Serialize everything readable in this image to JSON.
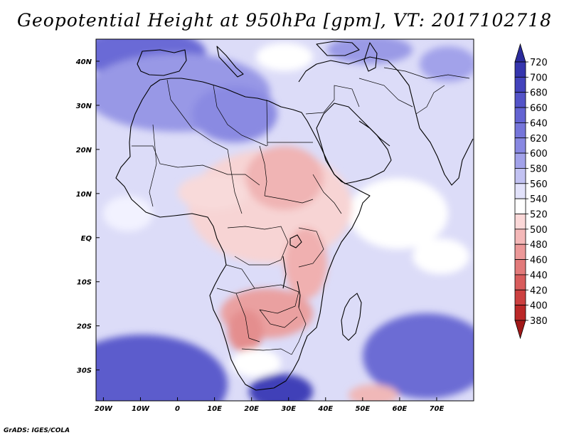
{
  "title": "Geopotential Height at 950hPa [gpm], VT: 2017102718",
  "credit": "GrADS: IGES/COLA",
  "map": {
    "variable": "Geopotential Height",
    "level": "950hPa",
    "units": "gpm",
    "valid_time": "2017102718",
    "lon_range": [
      -22,
      80
    ],
    "lat_range": [
      -37,
      45
    ],
    "lat_ticks": [
      {
        "value": 40,
        "label": "40N"
      },
      {
        "value": 30,
        "label": "30N"
      },
      {
        "value": 20,
        "label": "20N"
      },
      {
        "value": 10,
        "label": "10N"
      },
      {
        "value": 0,
        "label": "EQ"
      },
      {
        "value": -10,
        "label": "10S"
      },
      {
        "value": -20,
        "label": "20S"
      },
      {
        "value": -30,
        "label": "30S"
      }
    ],
    "lon_ticks": [
      {
        "value": -20,
        "label": "20W"
      },
      {
        "value": -10,
        "label": "10W"
      },
      {
        "value": 0,
        "label": "0"
      },
      {
        "value": 10,
        "label": "10E"
      },
      {
        "value": 20,
        "label": "20E"
      },
      {
        "value": 30,
        "label": "30E"
      },
      {
        "value": 40,
        "label": "40E"
      },
      {
        "value": 50,
        "label": "50E"
      },
      {
        "value": 60,
        "label": "60E"
      },
      {
        "value": 70,
        "label": "70E"
      }
    ]
  },
  "colorbar": {
    "levels": [
      720,
      700,
      680,
      660,
      640,
      620,
      600,
      580,
      560,
      540,
      520,
      500,
      480,
      460,
      440,
      420,
      400,
      380
    ],
    "colors": [
      "#2b2b9c",
      "#3535ae",
      "#4343bc",
      "#5353c8",
      "#6363d2",
      "#7575da",
      "#8888e2",
      "#a2a2ea",
      "#c2c2f2",
      "#e2e2fa",
      "#ffffff",
      "#fbd8d8",
      "#f4b8b8",
      "#ec9898",
      "#e27a7a",
      "#d85c5c",
      "#cc4040",
      "#bb2828",
      "#a01818"
    ]
  }
}
